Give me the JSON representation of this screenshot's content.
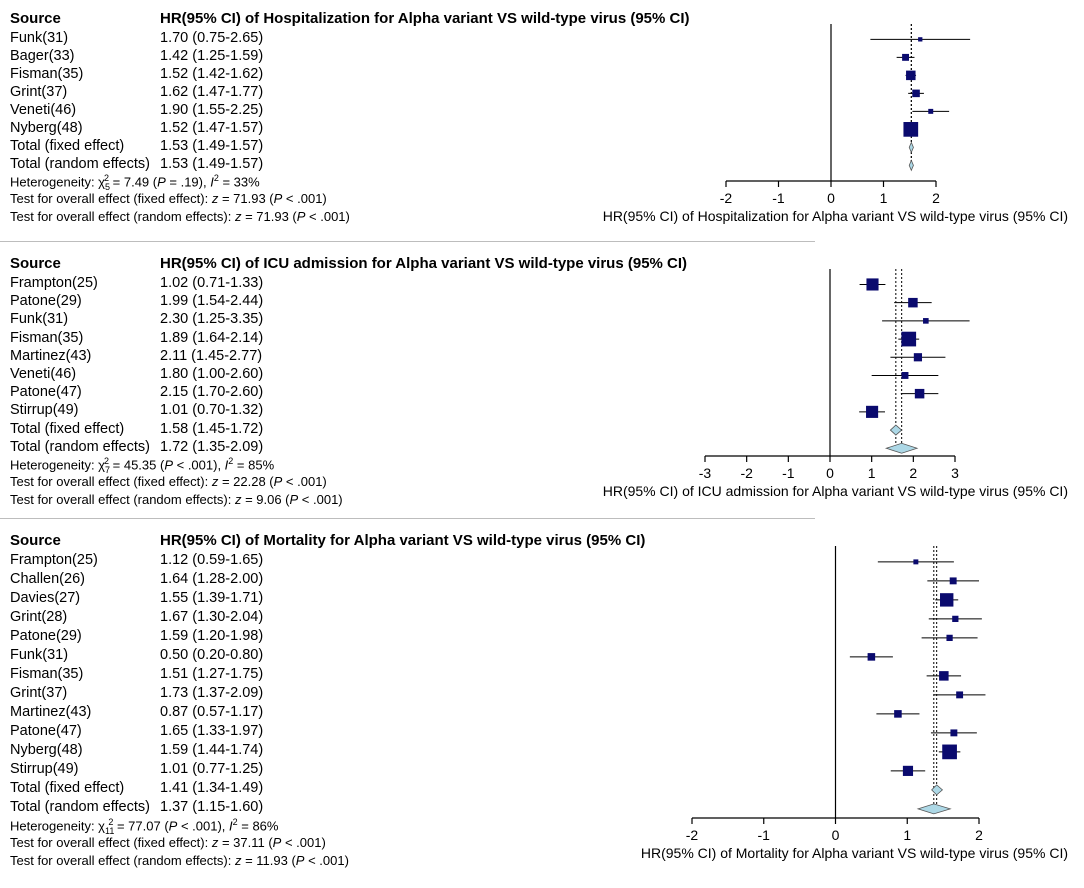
{
  "colors": {
    "square": "#0a0a6e",
    "diamond_fill": "#add8e6",
    "diamond_stroke": "#555555",
    "divider": "#bdbdbd"
  },
  "chart_data": [
    {
      "type": "forest",
      "header_source": "Source",
      "header_title": "HR(95% CI) of Hospitalization for Alpha variant VS wild-type virus (95% CI)",
      "xlabel": "HR(95% CI) of Hospitalization for Alpha variant VS wild-type virus (95% CI)",
      "xlim": [
        -2,
        2
      ],
      "ticks": [
        -2,
        -1,
        0,
        1,
        2
      ],
      "studies": [
        {
          "name": "Funk(31)",
          "label": "1.70 (0.75-2.65)",
          "est": 1.7,
          "lo": 0.75,
          "hi": 2.65,
          "w": 1
        },
        {
          "name": "Bager(33)",
          "label": "1.42 (1.25-1.59)",
          "est": 1.42,
          "lo": 1.25,
          "hi": 1.59,
          "w": 3
        },
        {
          "name": "Fisman(35)",
          "label": "1.52 (1.42-1.62)",
          "est": 1.52,
          "lo": 1.42,
          "hi": 1.62,
          "w": 5
        },
        {
          "name": "Grint(37)",
          "label": "1.62 (1.47-1.77)",
          "est": 1.62,
          "lo": 1.47,
          "hi": 1.77,
          "w": 3.5
        },
        {
          "name": "Veneti(46)",
          "label": "1.90 (1.55-2.25)",
          "est": 1.9,
          "lo": 1.55,
          "hi": 2.25,
          "w": 1.5
        },
        {
          "name": "Nyberg(48)",
          "label": "1.52 (1.47-1.57)",
          "est": 1.52,
          "lo": 1.47,
          "hi": 1.57,
          "w": 9
        }
      ],
      "fixed": {
        "name": "Total (fixed effect)",
        "label": "1.53 (1.49-1.57)",
        "est": 1.53,
        "lo": 1.49,
        "hi": 1.57
      },
      "random": {
        "name": "Total (random effects)",
        "label": "1.53 (1.49-1.57)",
        "est": 1.53,
        "lo": 1.49,
        "hi": 1.57
      },
      "heterogeneity": {
        "prefix": "Heterogeneity: ",
        "chi": "χ",
        "df": "5",
        "stat": " = 7.49 (",
        "p": "P",
        "pval": " = .19), ",
        "i2": "I",
        "i2val": " = 33%"
      },
      "test_fixed": {
        "prefix": "Test for overall effect (fixed effect): ",
        "z": "z",
        "zval": " = 71.93 (",
        "p": "P",
        "pval": " < .001)"
      },
      "test_random": {
        "prefix": "Test for overall effect (random effects): ",
        "z": "z",
        "zval": " = 71.93 (",
        "p": "P",
        "pval": " < .001)"
      }
    },
    {
      "type": "forest",
      "header_source": "Source",
      "header_title": "HR(95% CI) of ICU admission for Alpha variant VS wild-type virus (95% CI)",
      "xlabel": "HR(95% CI) of ICU admission for Alpha variant VS wild-type virus (95% CI)",
      "xlim": [
        -3,
        3
      ],
      "ticks": [
        -3,
        -2,
        -1,
        0,
        1,
        2,
        3
      ],
      "studies": [
        {
          "name": "Frampton(25)",
          "label": "1.02 (0.71-1.33)",
          "est": 1.02,
          "lo": 0.71,
          "hi": 1.33,
          "w": 7
        },
        {
          "name": "Patone(29)",
          "label": "1.99 (1.54-2.44)",
          "est": 1.99,
          "lo": 1.54,
          "hi": 2.44,
          "w": 5
        },
        {
          "name": "Funk(31)",
          "label": "2.30 (1.25-3.35)",
          "est": 2.3,
          "lo": 1.25,
          "hi": 3.35,
          "w": 2
        },
        {
          "name": "Fisman(35)",
          "label": "1.89 (1.64-2.14)",
          "est": 1.89,
          "lo": 1.64,
          "hi": 2.14,
          "w": 9
        },
        {
          "name": "Martinez(43)",
          "label": "2.11 (1.45-2.77)",
          "est": 2.11,
          "lo": 1.45,
          "hi": 2.77,
          "w": 4
        },
        {
          "name": "Veneti(46)",
          "label": "1.80 (1.00-2.60)",
          "est": 1.8,
          "lo": 1.0,
          "hi": 2.6,
          "w": 3
        },
        {
          "name": "Patone(47)",
          "label": "2.15 (1.70-2.60)",
          "est": 2.15,
          "lo": 1.7,
          "hi": 2.6,
          "w": 5
        },
        {
          "name": "Stirrup(49)",
          "label": "1.01 (0.70-1.32)",
          "est": 1.01,
          "lo": 0.7,
          "hi": 1.32,
          "w": 7
        }
      ],
      "fixed": {
        "name": "Total (fixed effect)",
        "label": "1.58 (1.45-1.72)",
        "est": 1.58,
        "lo": 1.45,
        "hi": 1.72
      },
      "random": {
        "name": "Total (random effects)",
        "label": "1.72 (1.35-2.09)",
        "est": 1.72,
        "lo": 1.35,
        "hi": 2.09
      },
      "heterogeneity": {
        "prefix": "Heterogeneity: ",
        "chi": "χ",
        "df": "7",
        "stat": " = 45.35 (",
        "p": "P",
        "pval": " < .001), ",
        "i2": "I",
        "i2val": " = 85%"
      },
      "test_fixed": {
        "prefix": "Test for overall effect (fixed effect): ",
        "z": "z",
        "zval": " = 22.28 (",
        "p": "P",
        "pval": " < .001)"
      },
      "test_random": {
        "prefix": "Test for overall effect (random effects): ",
        "z": "z",
        "zval": " = 9.06 (",
        "p": "P",
        "pval": " < .001)"
      }
    },
    {
      "type": "forest",
      "header_source": "Source",
      "header_title": "HR(95% CI) of Mortality for Alpha variant VS wild-type virus (95% CI)",
      "xlabel": "HR(95% CI) of Mortality for Alpha variant VS wild-type virus (95% CI)",
      "xlim": [
        -2,
        2
      ],
      "ticks": [
        -2,
        -1,
        0,
        1,
        2
      ],
      "studies": [
        {
          "name": "Frampton(25)",
          "label": "1.12 (0.59-1.65)",
          "est": 1.12,
          "lo": 0.59,
          "hi": 1.65,
          "w": 1.5
        },
        {
          "name": "Challen(26)",
          "label": "1.64 (1.28-2.00)",
          "est": 1.64,
          "lo": 1.28,
          "hi": 2.0,
          "w": 3
        },
        {
          "name": "Davies(27)",
          "label": "1.55 (1.39-1.71)",
          "est": 1.55,
          "lo": 1.39,
          "hi": 1.71,
          "w": 8
        },
        {
          "name": "Grint(28)",
          "label": "1.67 (1.30-2.04)",
          "est": 1.67,
          "lo": 1.3,
          "hi": 2.04,
          "w": 2.5
        },
        {
          "name": "Patone(29)",
          "label": "1.59 (1.20-1.98)",
          "est": 1.59,
          "lo": 1.2,
          "hi": 1.98,
          "w": 2.5
        },
        {
          "name": "Funk(31)",
          "label": "0.50 (0.20-0.80)",
          "est": 0.5,
          "lo": 0.2,
          "hi": 0.8,
          "w": 3.5
        },
        {
          "name": "Fisman(35)",
          "label": "1.51 (1.27-1.75)",
          "est": 1.51,
          "lo": 1.27,
          "hi": 1.75,
          "w": 5
        },
        {
          "name": "Grint(37)",
          "label": "1.73 (1.37-2.09)",
          "est": 1.73,
          "lo": 1.37,
          "hi": 2.09,
          "w": 3
        },
        {
          "name": "Martinez(43)",
          "label": "0.87 (0.57-1.17)",
          "est": 0.87,
          "lo": 0.57,
          "hi": 1.17,
          "w": 3.5
        },
        {
          "name": "Patone(47)",
          "label": "1.65 (1.33-1.97)",
          "est": 1.65,
          "lo": 1.33,
          "hi": 1.97,
          "w": 3
        },
        {
          "name": "Nyberg(48)",
          "label": "1.59 (1.44-1.74)",
          "est": 1.59,
          "lo": 1.44,
          "hi": 1.74,
          "w": 9
        },
        {
          "name": "Stirrup(49)",
          "label": "1.01 (0.77-1.25)",
          "est": 1.01,
          "lo": 0.77,
          "hi": 1.25,
          "w": 5.5
        }
      ],
      "fixed": {
        "name": "Total (fixed effect)",
        "label": "1.41 (1.34-1.49)",
        "est": 1.41,
        "lo": 1.34,
        "hi": 1.49
      },
      "random": {
        "name": "Total (random effects)",
        "label": "1.37 (1.15-1.60)",
        "est": 1.37,
        "lo": 1.15,
        "hi": 1.6
      },
      "heterogeneity": {
        "prefix": "Heterogeneity: ",
        "chi": "χ",
        "df": "11",
        "stat": " = 77.07 (",
        "p": "P",
        "pval": " < .001), ",
        "i2": "I",
        "i2val": " = 86%"
      },
      "test_fixed": {
        "prefix": "Test for overall effect (fixed effect): ",
        "z": "z",
        "zval": " = 37.11 (",
        "p": "P",
        "pval": " < .001)"
      },
      "test_random": {
        "prefix": "Test for overall effect (random effects): ",
        "z": "z",
        "zval": " = 11.93 (",
        "p": "P",
        "pval": " < .001)"
      }
    }
  ]
}
